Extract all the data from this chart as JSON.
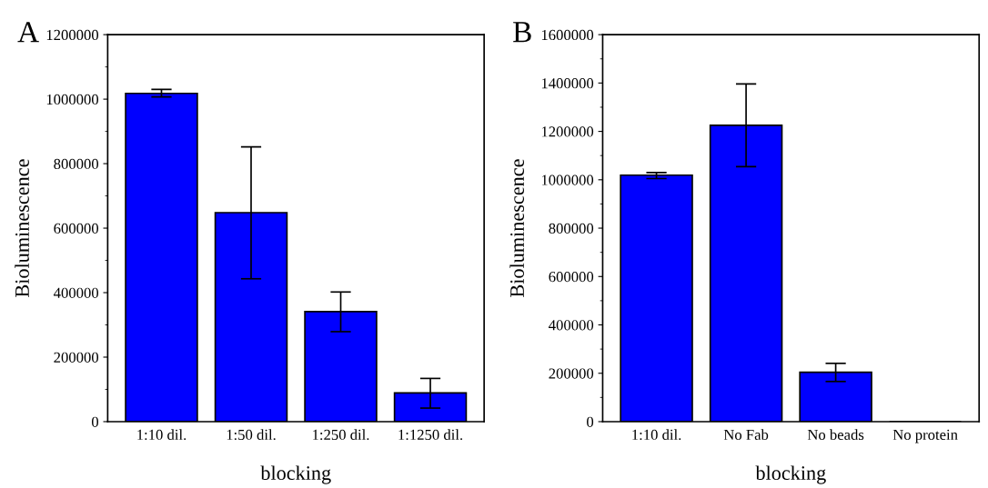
{
  "chart_data": [
    {
      "type": "bar",
      "annotations": [
        "A"
      ],
      "xlabel": "blocking",
      "ylabel": "Bioluminescence",
      "categories": [
        "1:10 dil.",
        "1:50 dil.",
        "1:250 dil.",
        "1:1250 dil."
      ],
      "values": [
        1018000,
        648000,
        341000,
        89000
      ],
      "color": "#0000ff",
      "errors": [
        [
          1007000,
          1030000
        ],
        [
          443000,
          852000
        ],
        [
          279000,
          402000
        ],
        [
          42000,
          134000
        ]
      ],
      "ylim": [
        0,
        1200000
      ],
      "yticks": [
        0,
        200000,
        400000,
        600000,
        800000,
        1000000,
        1200000
      ],
      "grid": false
    },
    {
      "type": "bar",
      "annotations": [
        "B"
      ],
      "xlabel": "blocking",
      "ylabel": "Bioluminescence",
      "categories": [
        "1:10 dil.",
        "No Fab",
        "No beads",
        "No protein"
      ],
      "values": [
        1019000,
        1225000,
        204000,
        0
      ],
      "color": "#0000ff",
      "errors": [
        [
          1005000,
          1030000
        ],
        [
          1054000,
          1396000
        ],
        [
          166000,
          241000
        ],
        null
      ],
      "ylim": [
        0,
        1600000
      ],
      "yticks": [
        0,
        200000,
        400000,
        600000,
        800000,
        1000000,
        1200000,
        1400000,
        1600000
      ],
      "grid": false
    }
  ]
}
